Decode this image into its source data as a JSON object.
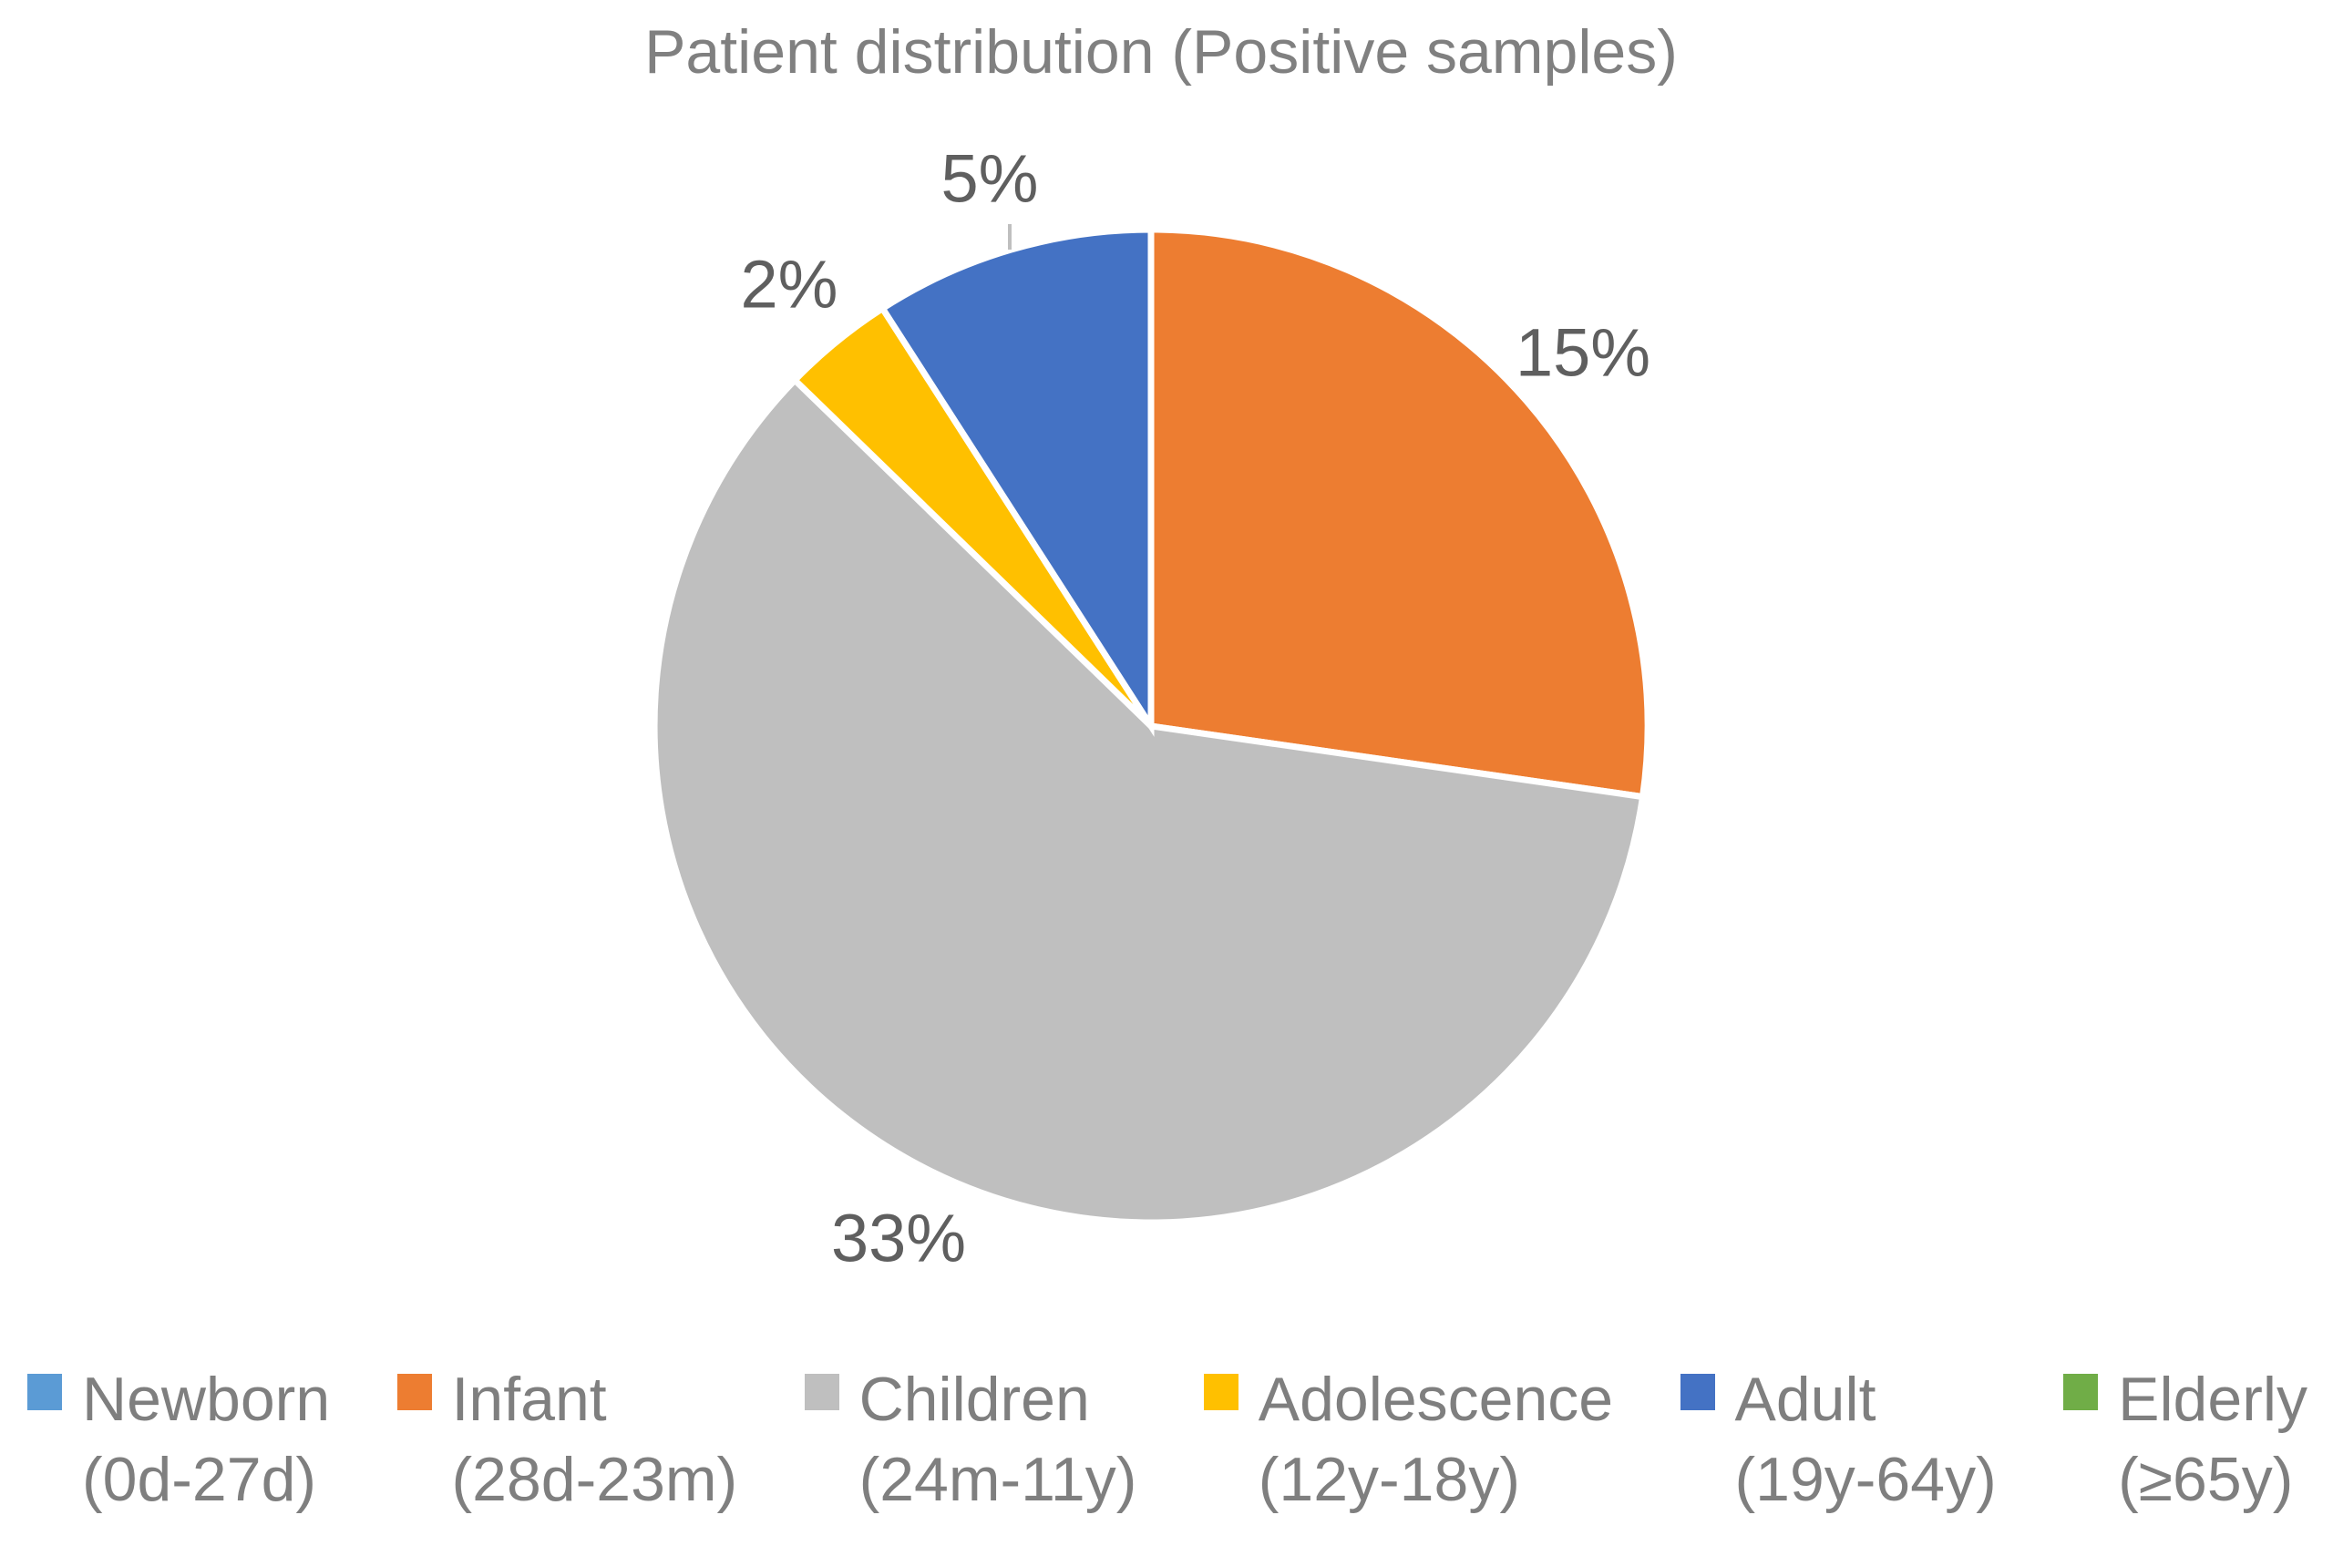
{
  "chart_data": {
    "type": "pie",
    "title": "Patient distribution (Positive samples)",
    "legend_position": "bottom",
    "start_angle_deg": 0,
    "direction": "clockwise",
    "slices": [
      {
        "name": "Newborn",
        "range": "(0d-27d)",
        "value_pct": 0,
        "label": "",
        "color": "#5B9BD5"
      },
      {
        "name": "Infant",
        "range": "(28d-23m)",
        "value_pct": 15,
        "label": "15%",
        "color": "#ED7D31"
      },
      {
        "name": "Children",
        "range": "(24m-11y)",
        "value_pct": 33,
        "label": "33%",
        "color": "#BFBFBF"
      },
      {
        "name": "Adolescence",
        "range": "(12y-18y)",
        "value_pct": 2,
        "label": "2%",
        "color": "#FFC000"
      },
      {
        "name": "Adult",
        "range": "(19y-64y)",
        "value_pct": 5,
        "label": "5%",
        "color": "#4472C4"
      },
      {
        "name": "Elderly",
        "range": "(≥65y)",
        "value_pct": 0,
        "label": "",
        "color": "#70AD47"
      }
    ]
  },
  "colors": {
    "background": "#FFFFFF",
    "title_text": "#808080",
    "label_text": "#5F5F5F",
    "legend_text": "#7F7F7F",
    "leader_line": "#BFBFBF",
    "slice_border": "#FFFFFF"
  }
}
